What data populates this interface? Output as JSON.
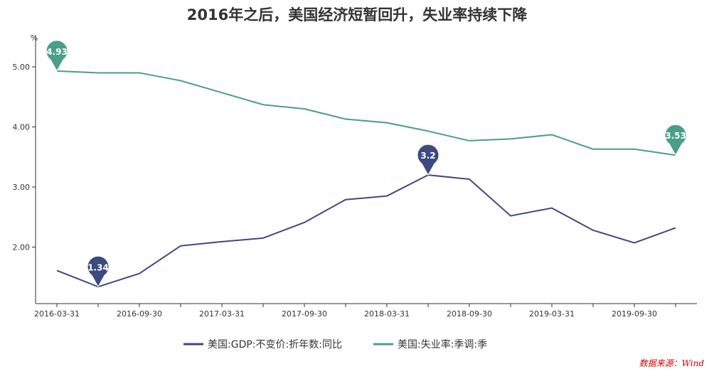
{
  "chart_data": {
    "type": "line",
    "title": "2016年之后，美国经济短暂回升，失业率持续下降",
    "yunit": "%",
    "ylim": [
      1.0,
      5.5
    ],
    "yticks": [
      "2.00",
      "3.00",
      "4.00",
      "5.00"
    ],
    "ytick_values": [
      2,
      3,
      4,
      5
    ],
    "x": [
      "2016-03-31",
      "2016-06-30",
      "2016-09-30",
      "2016-12-31",
      "2017-03-31",
      "2017-06-30",
      "2017-09-30",
      "2017-12-31",
      "2018-03-31",
      "2018-06-30",
      "2018-09-30",
      "2018-12-31",
      "2019-03-31",
      "2019-06-30",
      "2019-09-30",
      "2019-12-31"
    ],
    "xtick_labels": [
      "2016-03-31",
      "2016-09-30",
      "2017-03-31",
      "2017-09-30",
      "2018-03-31",
      "2018-09-30",
      "2019-03-31",
      "2019-09-30"
    ],
    "grid": false,
    "legend_position": "bottom-center",
    "series": [
      {
        "name": "美国:GDP:不变价:折年数:同比",
        "color": "#3d4a80",
        "values": [
          1.61,
          1.34,
          1.56,
          2.02,
          2.09,
          2.15,
          2.41,
          2.79,
          2.85,
          3.2,
          3.13,
          2.52,
          2.65,
          2.28,
          2.07,
          2.32
        ],
        "markers": [
          {
            "index": 1,
            "label": "1.34"
          },
          {
            "index": 9,
            "label": "3.2"
          }
        ]
      },
      {
        "name": "美国:失业率:季调:季",
        "color": "#4a9e8a",
        "values": [
          4.93,
          4.9,
          4.9,
          4.77,
          4.57,
          4.37,
          4.3,
          4.13,
          4.07,
          3.93,
          3.77,
          3.8,
          3.87,
          3.63,
          3.63,
          3.53
        ],
        "markers": [
          {
            "index": 0,
            "label": "4.93"
          },
          {
            "index": 15,
            "label": "3.53"
          }
        ]
      }
    ],
    "source": "数据来源：Wind"
  }
}
